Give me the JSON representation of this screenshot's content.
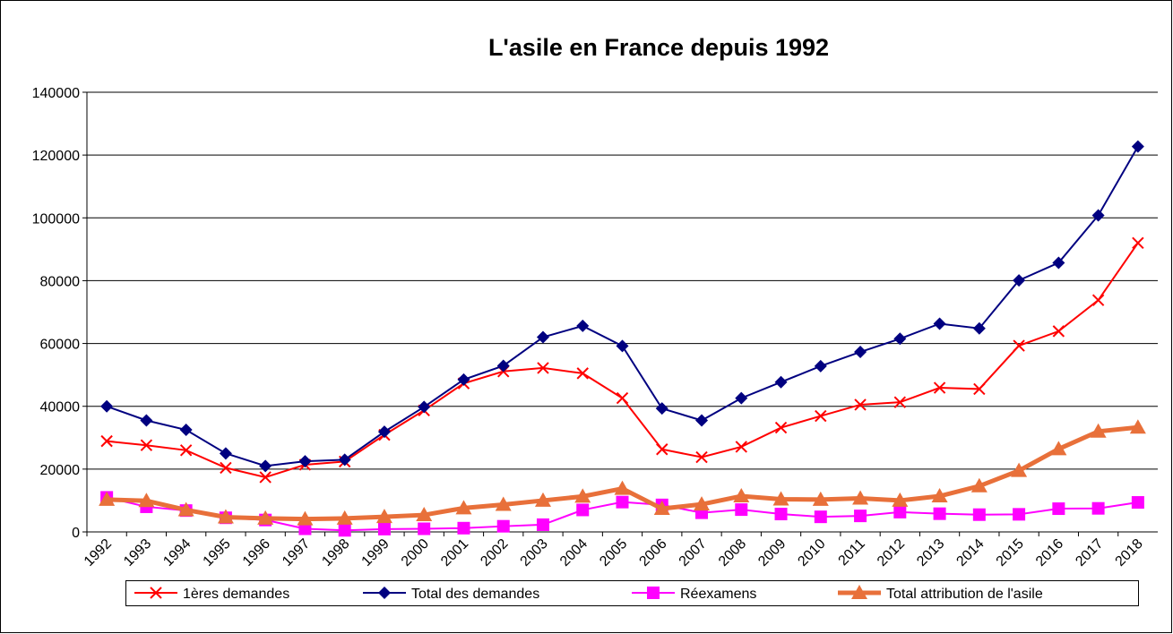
{
  "chart_data": {
    "type": "line",
    "title": "L'asile en France depuis 1992",
    "categories": [
      "1992",
      "1993",
      "1994",
      "1995",
      "1996",
      "1997",
      "1998",
      "1999",
      "2000",
      "2001",
      "2002",
      "2003",
      "2004",
      "2005",
      "2006",
      "2007",
      "2008",
      "2009",
      "2010",
      "2011",
      "2012",
      "2013",
      "2014",
      "2015",
      "2016",
      "2017",
      "2018"
    ],
    "series": [
      {
        "name": "1ères demandes",
        "color": "#ff0000",
        "marker": "x",
        "values": [
          28900,
          27600,
          26000,
          20400,
          17400,
          21400,
          22400,
          30900,
          38700,
          47300,
          51100,
          52200,
          50500,
          42600,
          26300,
          23800,
          27100,
          33200,
          36900,
          40500,
          41300,
          45900,
          45500,
          59300,
          63900,
          73800,
          92000
        ]
      },
      {
        "name": "Total des demandes",
        "color": "#000080",
        "marker": "diamond",
        "values": [
          40000,
          35500,
          32500,
          25000,
          21000,
          22500,
          23000,
          31900,
          39800,
          48500,
          52900,
          62000,
          65600,
          59200,
          39300,
          35500,
          42600,
          47700,
          52800,
          57300,
          61500,
          66300,
          64800,
          80100,
          85700,
          100800,
          122700
        ]
      },
      {
        "name": "Réexamens",
        "color": "#ff00ff",
        "marker": "square",
        "values": [
          11000,
          8000,
          6800,
          4500,
          3800,
          1000,
          500,
          900,
          1000,
          1200,
          1800,
          2300,
          7000,
          9500,
          8600,
          6100,
          7100,
          5700,
          4800,
          5100,
          6300,
          5800,
          5500,
          5600,
          7400,
          7500,
          9400
        ]
      },
      {
        "name": "Total attribution de l'asile",
        "color": "#e8703a",
        "marker": "triangle",
        "values": [
          10300,
          9900,
          7000,
          4700,
          4300,
          4100,
          4300,
          4800,
          5400,
          7600,
          8700,
          10000,
          11300,
          13800,
          7400,
          8800,
          11400,
          10400,
          10300,
          10700,
          10000,
          11400,
          14600,
          19500,
          26400,
          32000,
          33300
        ]
      }
    ],
    "ylim": [
      0,
      140000
    ],
    "yticks": [
      0,
      20000,
      40000,
      60000,
      80000,
      100000,
      120000,
      140000
    ],
    "grid": true
  }
}
